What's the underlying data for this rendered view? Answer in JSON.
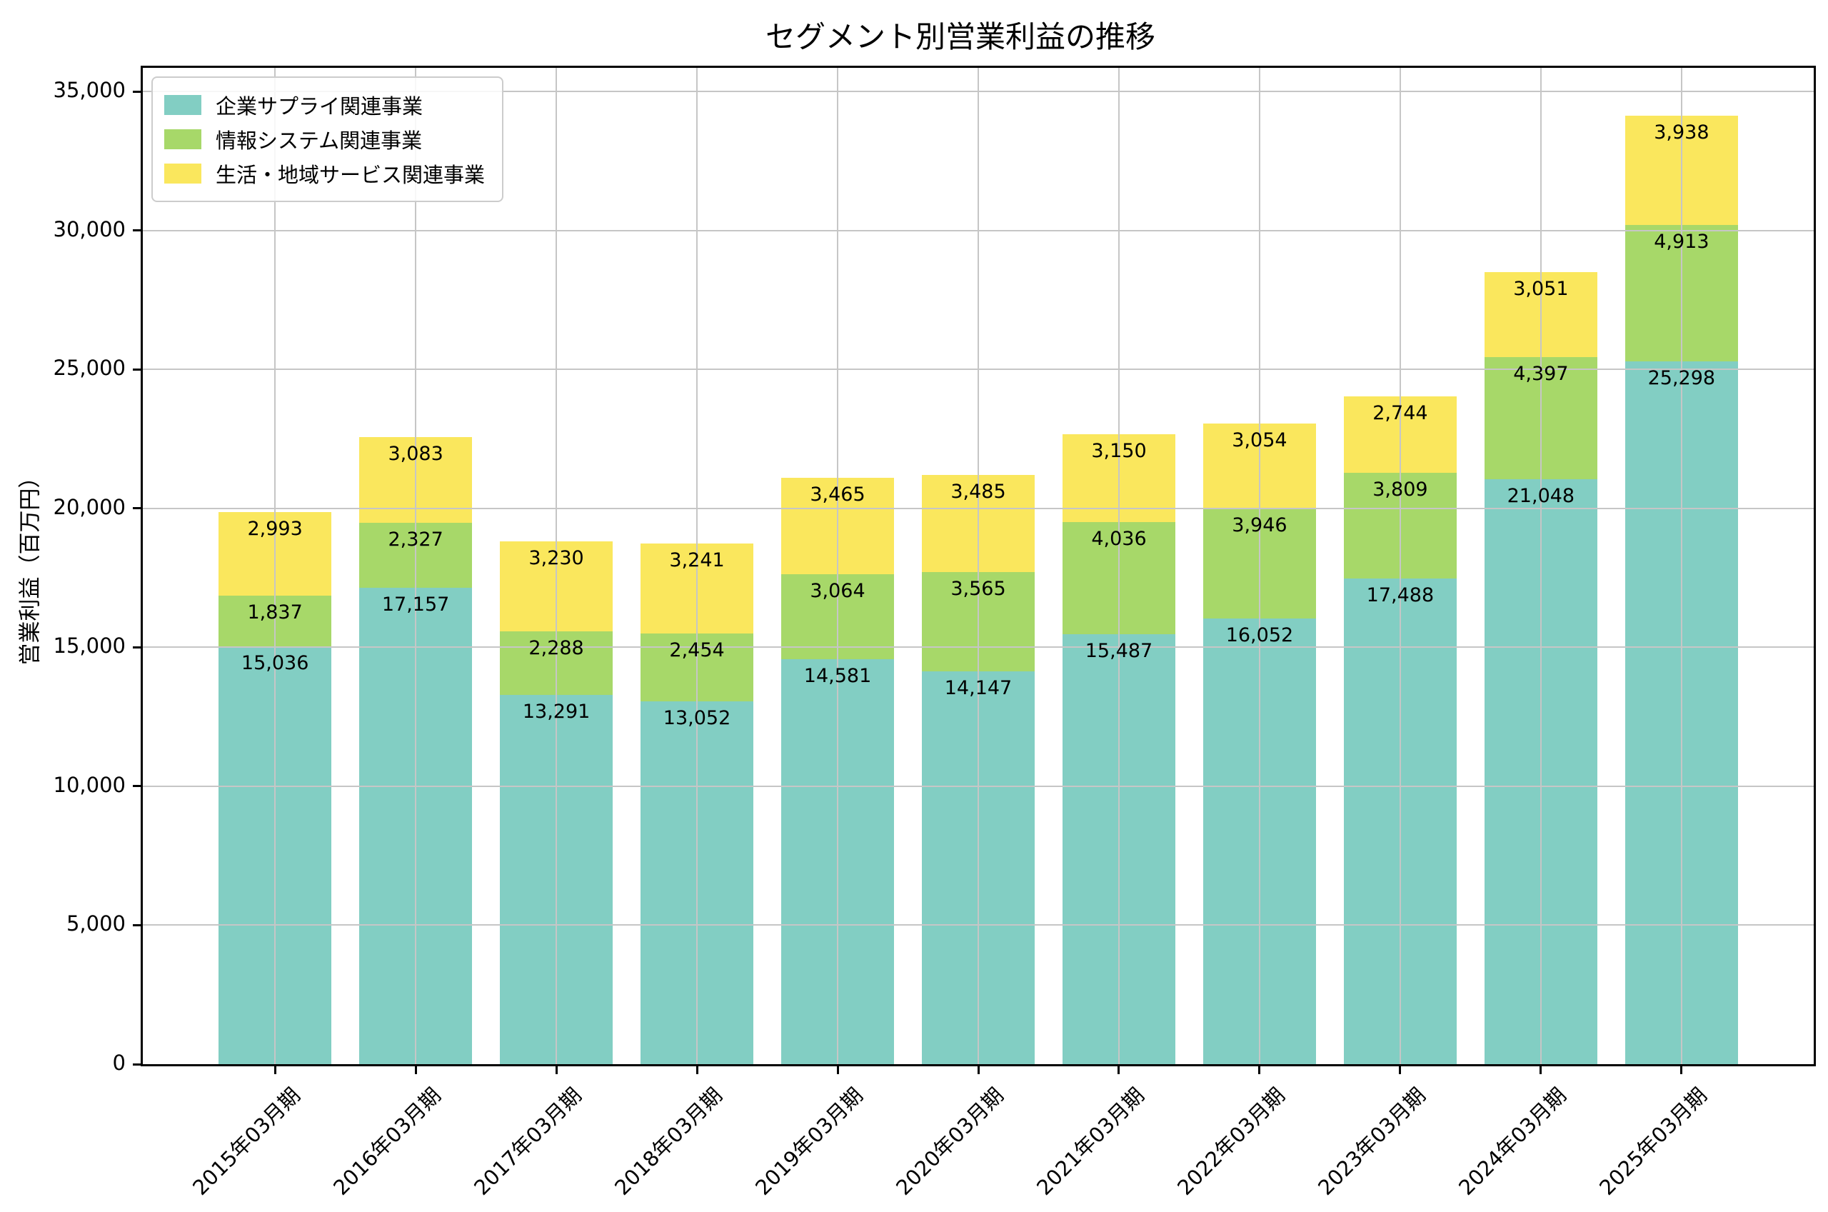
{
  "title": "セグメント別営業利益の推移",
  "chart_data": {
    "type": "bar",
    "stacked": true,
    "title": "セグメント別営業利益の推移",
    "xlabel": "",
    "ylabel": "営業利益（百万円）",
    "categories": [
      "2015年03月期",
      "2016年03月期",
      "2017年03月期",
      "2018年03月期",
      "2019年03月期",
      "2020年03月期",
      "2021年03月期",
      "2022年03月期",
      "2023年03月期",
      "2024年03月期",
      "2025年03月期"
    ],
    "series": [
      {
        "name": "企業サプライ関連事業",
        "color": "#82CEC3",
        "values": [
          15036,
          17157,
          13291,
          13052,
          14581,
          14147,
          15487,
          16052,
          17488,
          21048,
          25298
        ]
      },
      {
        "name": "情報システム関連事業",
        "color": "#A7D869",
        "values": [
          1837,
          2327,
          2288,
          2454,
          3064,
          3565,
          4036,
          3946,
          3809,
          4397,
          4913
        ]
      },
      {
        "name": "生活・地域サービス関連事業",
        "color": "#FAE75D",
        "values": [
          2993,
          3083,
          3230,
          3241,
          3465,
          3485,
          3150,
          3054,
          2744,
          3051,
          3938
        ]
      }
    ],
    "ylim": [
      0,
      35860
    ],
    "yticks": [
      0,
      5000,
      10000,
      15000,
      20000,
      25000,
      30000,
      35000
    ],
    "grid": true,
    "grid_color": "#c6c6c6",
    "legend_position": "upper left",
    "bar_labels": true,
    "xtick_rotation": 45
  }
}
